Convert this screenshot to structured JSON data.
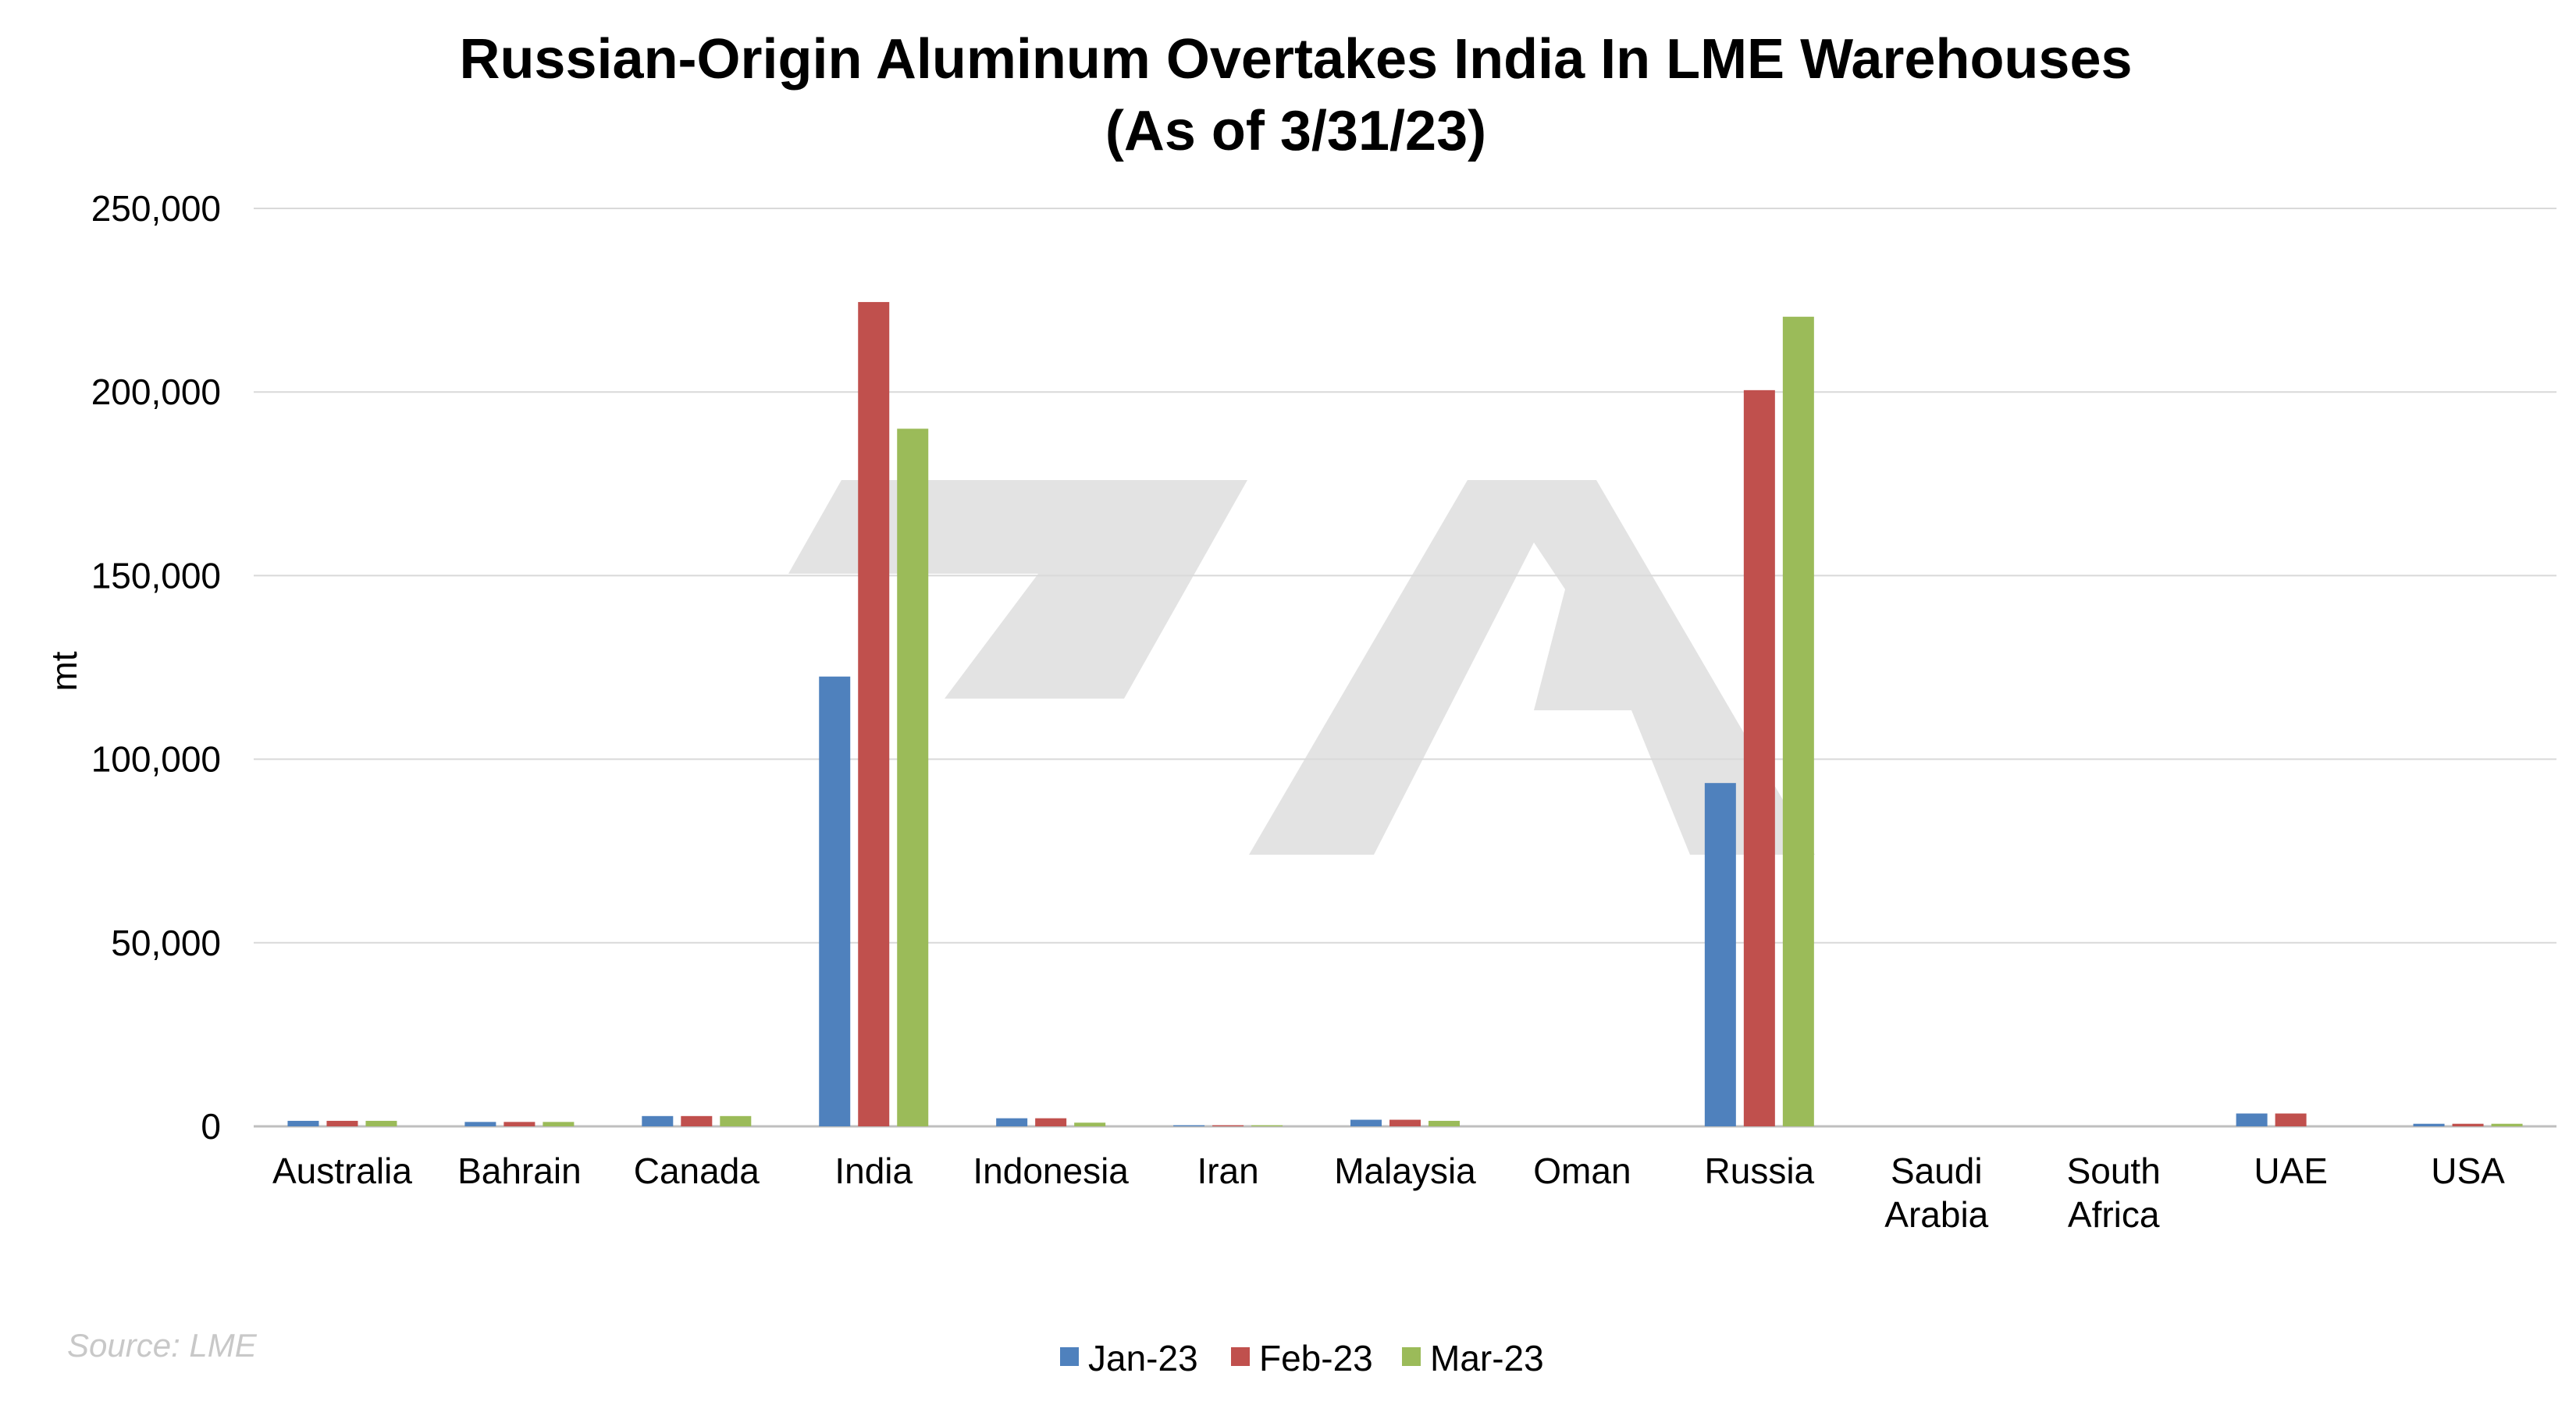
{
  "chart_data": {
    "type": "bar",
    "title": "Russian-Origin Aluminum Overtakes India In LME Warehouses",
    "subtitle": "(As of 3/31/23)",
    "xlabel": "",
    "ylabel": "mt",
    "ylim": [
      0,
      250000
    ],
    "yticks": [
      "0",
      "50,000",
      "100,000",
      "150,000",
      "200,000",
      "250,000"
    ],
    "ytick_values": [
      0,
      50000,
      100000,
      150000,
      200000,
      250000
    ],
    "grid": true,
    "legend_position": "bottom",
    "categories": [
      [
        "Australia"
      ],
      [
        "Bahrain"
      ],
      [
        "Canada"
      ],
      [
        "India"
      ],
      [
        "Indonesia"
      ],
      [
        "Iran"
      ],
      [
        "Malaysia"
      ],
      [
        "Oman"
      ],
      [
        "Russia"
      ],
      [
        "Saudi",
        "Arabia"
      ],
      [
        "South",
        "Africa"
      ],
      [
        "UAE"
      ],
      [
        "USA"
      ]
    ],
    "series": [
      {
        "name": "Jan-23",
        "color": "#4f81bd",
        "values": [
          1500,
          1200,
          2800,
          122500,
          2200,
          300,
          1800,
          0,
          93500,
          0,
          0,
          3500,
          700
        ]
      },
      {
        "name": "Feb-23",
        "color": "#c0504d",
        "values": [
          1500,
          1200,
          2800,
          224500,
          2200,
          300,
          1800,
          0,
          200500,
          0,
          0,
          3500,
          700
        ]
      },
      {
        "name": "Mar-23",
        "color": "#9bbb59",
        "values": [
          1500,
          1200,
          2800,
          190000,
          1000,
          300,
          1500,
          0,
          220500,
          0,
          0,
          0,
          700
        ]
      }
    ]
  },
  "source": "Source: LME",
  "watermark": "logo watermark"
}
